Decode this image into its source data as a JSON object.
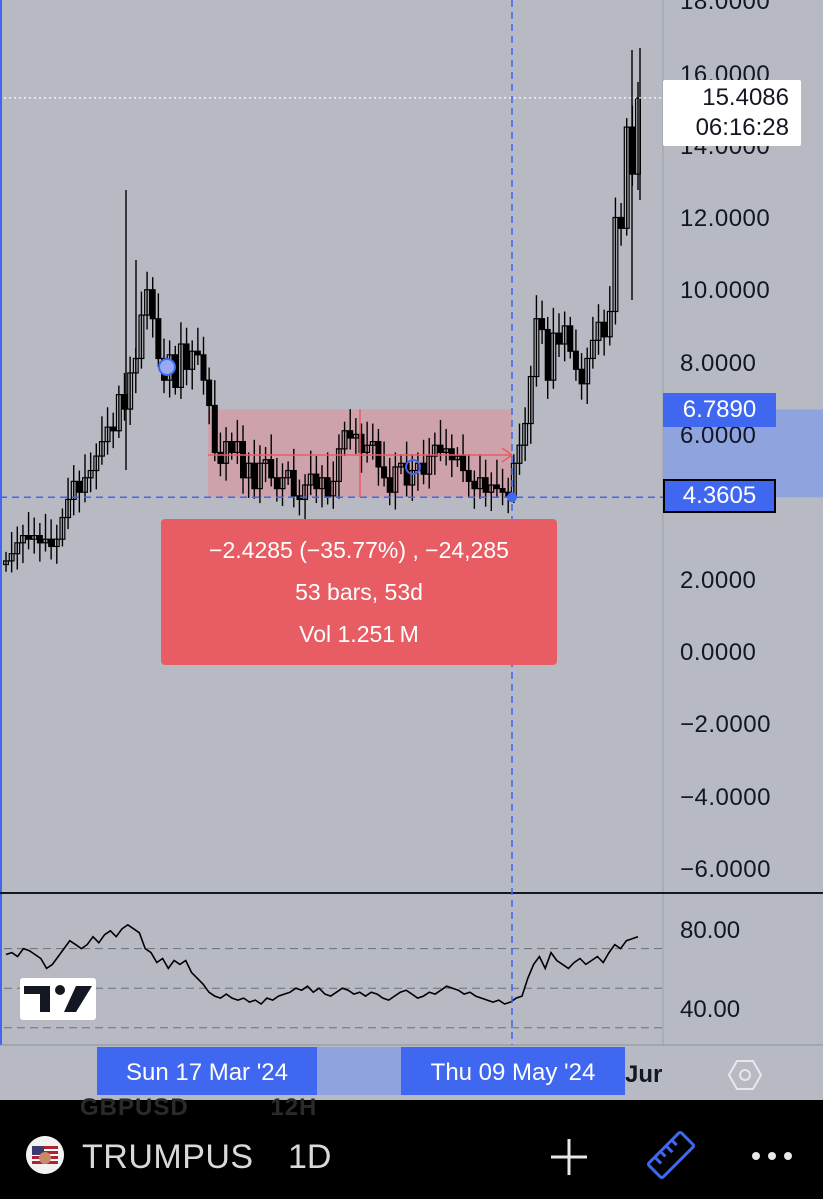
{
  "chart_data": {
    "type": "candlestick",
    "symbol": "TRUMPUS",
    "interval": "1D",
    "y_axis_ticks": [
      "18.0000",
      "16.0000",
      "14.0000",
      "12.0000",
      "10.0000",
      "8.0000",
      "6.0000",
      "2.0000",
      "0.0000",
      "−2.0000",
      "−4.0000",
      "−6.0000"
    ],
    "y_tick_values": [
      18,
      16,
      14,
      12,
      10,
      8,
      6,
      2,
      0,
      -2,
      -4,
      -6
    ],
    "ylim": [
      -6.5,
      18.2
    ],
    "last_price": "15.4086",
    "last_price_value": 15.4086,
    "countdown": "06:16:28",
    "measure_high_label": "6.7890",
    "measure_high_value": 6.789,
    "measure_low_label": "4.3605",
    "measure_low_value": 4.3605,
    "x_date_labels": [
      "Sun 17 Mar '24",
      "Thu 09 May '24"
    ],
    "x_partial_label": "Jur",
    "candles_close_approx": [
      2.6,
      2.8,
      3.1,
      3.3,
      3.2,
      3.3,
      3.1,
      3.2,
      3.0,
      3.2,
      3.8,
      4.3,
      4.8,
      4.5,
      4.9,
      5.1,
      5.5,
      5.9,
      6.3,
      6.2,
      7.2,
      6.8,
      7.8,
      8.2,
      9.4,
      10.1,
      9.3,
      8.2,
      7.6,
      8.3,
      7.4,
      8.6,
      7.9,
      8.4,
      8.3,
      7.6,
      6.9,
      5.6,
      5.3,
      5.9,
      5.6,
      5.9,
      4.9,
      5.3,
      4.6,
      5.3,
      5.4,
      4.9,
      4.6,
      4.9,
      5.1,
      4.4,
      4.3,
      4.7,
      5.0,
      4.6,
      4.9,
      4.4,
      4.8,
      5.7,
      6.2,
      6.0,
      6.1,
      5.6,
      5.8,
      5.9,
      5.2,
      4.9,
      4.5,
      5.2,
      5.3,
      4.7,
      5.1,
      5.3,
      5.0,
      5.5,
      5.8,
      5.6,
      5.7,
      5.4,
      5.5,
      5.1,
      4.8,
      4.6,
      4.9,
      4.5,
      4.7,
      4.6,
      4.5,
      4.4,
      5.3,
      5.8,
      6.4,
      7.7,
      9.3,
      9.0,
      7.6,
      8.9,
      8.6,
      9.1,
      8.4,
      7.9,
      7.5,
      8.2,
      8.7,
      9.2,
      8.8,
      9.5,
      12.1,
      11.8,
      14.6,
      13.3,
      15.4
    ]
  },
  "measure": {
    "line1": "−2.4285 (−35.77%) , −24,285",
    "line2": "53 bars, 53d",
    "line3": "Vol 1.251 M"
  },
  "rsi": {
    "ticks": [
      "80.00",
      "40.00"
    ],
    "values": [
      67,
      68,
      66,
      70,
      69,
      67,
      65,
      60,
      62,
      66,
      70,
      74,
      72,
      70,
      72,
      76,
      73,
      77,
      79,
      76,
      80,
      82,
      80,
      78,
      70,
      68,
      63,
      65,
      60,
      64,
      62,
      64,
      58,
      55,
      52,
      48,
      46,
      45,
      47,
      45,
      44,
      45,
      43,
      44,
      42,
      45,
      44,
      46,
      47,
      48,
      50,
      49,
      51,
      48,
      50,
      47,
      46,
      48,
      50,
      49,
      47,
      48,
      46,
      48,
      47,
      45,
      44,
      46,
      48,
      49,
      47,
      45,
      46,
      48,
      47,
      49,
      51,
      50,
      49,
      47,
      48,
      46,
      45,
      44,
      43,
      44,
      42,
      43,
      45,
      46,
      55,
      62,
      66,
      60,
      68,
      64,
      62,
      60,
      63,
      65,
      62,
      64,
      66,
      63,
      68,
      72,
      70,
      74,
      75,
      76
    ]
  },
  "toolbar": {
    "symbol": "TRUMPUS",
    "interval": "1D",
    "ghost_symbol": "GBPUSD",
    "ghost_interval": "12H"
  },
  "colors": {
    "background": "#b7bac3",
    "candle": "#000000",
    "measure_fill": "#e85d63",
    "crosshair": "#3f67f0",
    "axis_label_bg": "#3f67f0",
    "toolbar_bg": "#000000"
  }
}
